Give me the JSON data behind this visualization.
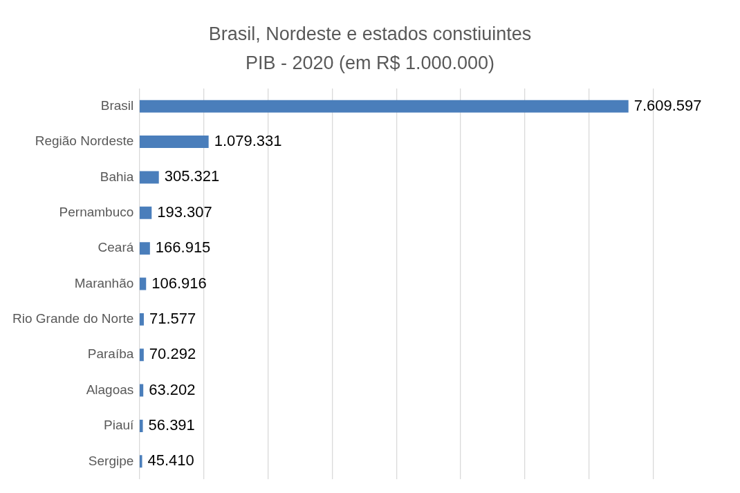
{
  "chart_data": {
    "type": "bar",
    "orientation": "horizontal",
    "title": "Brasil, Nordeste e estados constiuintes",
    "subtitle": "PIB - 2020 (em R$ 1.000.000)",
    "categories": [
      "Brasil",
      "Região Nordeste",
      "Bahia",
      "Pernambuco",
      "Ceará",
      "Maranhão",
      "Rio Grande do Norte",
      "Paraíba",
      "Alagoas",
      "Piauí",
      "Sergipe"
    ],
    "values": [
      7609597,
      1079331,
      305321,
      193307,
      166915,
      106916,
      71577,
      70292,
      63202,
      56391,
      45410
    ],
    "value_labels": [
      "7.609.597",
      "1.079.331",
      "305.321",
      "193.307",
      "166.915",
      "106.916",
      "71.577",
      "70.292",
      "63.202",
      "56.391",
      "45.410"
    ],
    "color": "#4a7ebb",
    "xlim": [
      0,
      8000000
    ],
    "xticks": [
      {
        "value": 0,
        "label": null
      },
      {
        "value": 1000000,
        "label": null
      },
      {
        "value": 2000000,
        "label": null
      },
      {
        "value": 3000000,
        "label": null
      },
      {
        "value": 4000000,
        "label": null
      },
      {
        "value": 5000000,
        "label": null
      },
      {
        "value": 6000000,
        "label": null
      },
      {
        "value": 7000000,
        "label": null
      },
      {
        "value": 8000000,
        "label": null
      }
    ],
    "grid": "x",
    "legend": false,
    "tick_labels": "y"
  }
}
